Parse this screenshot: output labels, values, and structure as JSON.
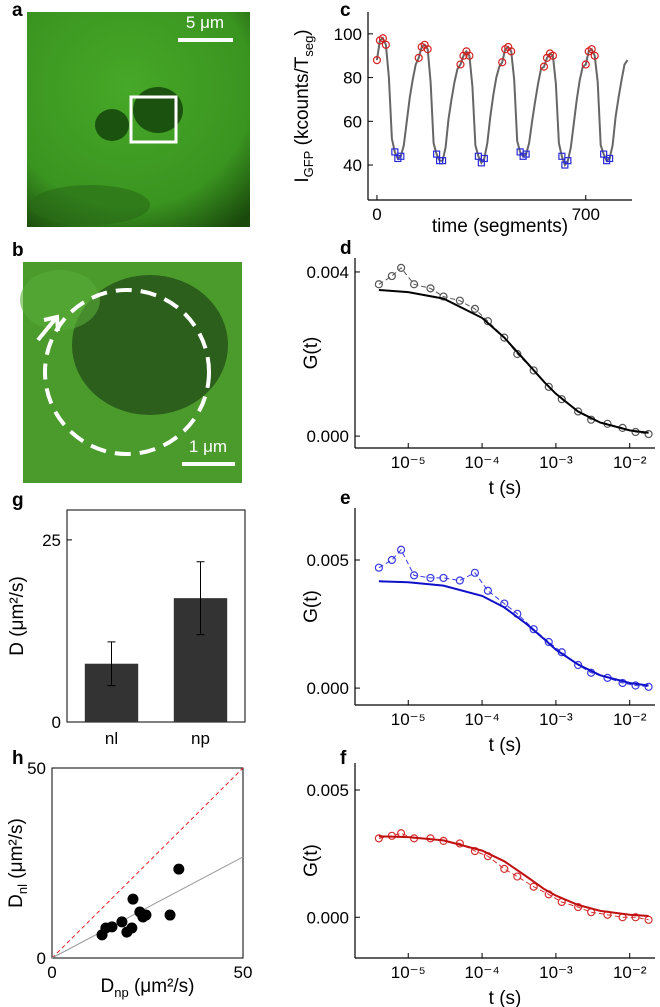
{
  "chart_data": [
    {
      "type": "image",
      "panel_label": "a",
      "scale_bar": "5 μm"
    },
    {
      "type": "image",
      "panel_label": "b",
      "scale_bar": "1 μm"
    },
    {
      "type": "line",
      "panel_label": "c",
      "xlabel": [
        "time (segments)"
      ],
      "ylabel": [
        "I",
        "GFP",
        " (kcounts/T",
        "seg",
        ")"
      ],
      "xlim": [
        -30,
        855
      ],
      "ylim": [
        24,
        110
      ],
      "xticks": [
        0,
        700
      ],
      "yticks": [
        40,
        60,
        80,
        100
      ],
      "series": [
        {
          "color": "#666666",
          "x": [
            0,
            10,
            20,
            30,
            40,
            50,
            60,
            70,
            80,
            90,
            100,
            110,
            120,
            130,
            140,
            150,
            160,
            170,
            180,
            190,
            200,
            210,
            220,
            230,
            240,
            250,
            260,
            270,
            280,
            290,
            300,
            310,
            320,
            330,
            340,
            350,
            360,
            370,
            380,
            390,
            400,
            410,
            420,
            430,
            440,
            450,
            460,
            470,
            480,
            490,
            500,
            510,
            520,
            530,
            540,
            550,
            560,
            570,
            580,
            590,
            600,
            610,
            620,
            630,
            640,
            650,
            660,
            670,
            680,
            690,
            700,
            710,
            720,
            730,
            740,
            750,
            760,
            770,
            780,
            790,
            800,
            810,
            820,
            830,
            840
          ],
          "values": [
            88,
            97,
            98,
            95,
            80,
            52,
            46,
            43,
            44,
            49,
            60,
            71,
            79,
            86,
            89,
            94,
            95,
            93,
            78,
            50,
            45,
            42,
            42,
            48,
            61,
            70,
            78,
            84,
            86,
            90,
            92,
            90,
            76,
            49,
            44,
            41,
            43,
            50,
            62,
            72,
            80,
            85,
            87,
            93,
            94,
            92,
            79,
            51,
            46,
            44,
            45,
            50,
            60,
            69,
            77,
            84,
            85,
            89,
            91,
            90,
            77,
            50,
            44,
            40,
            42,
            48,
            59,
            70,
            79,
            85,
            86,
            92,
            93,
            90,
            78,
            49,
            45,
            42,
            43,
            49,
            62,
            71,
            79,
            86,
            88
          ]
        },
        {
          "color": "#d42020",
          "marker": "circle",
          "x": [
            0,
            10,
            20,
            30,
            140,
            150,
            160,
            170,
            280,
            290,
            300,
            310,
            420,
            430,
            440,
            450,
            560,
            570,
            580,
            590,
            700,
            710,
            720,
            730
          ],
          "values": [
            88,
            97,
            98,
            95,
            89,
            94,
            95,
            93,
            86,
            90,
            92,
            90,
            87,
            93,
            94,
            92,
            85,
            89,
            91,
            90,
            86,
            92,
            93,
            90
          ]
        },
        {
          "color": "#2a2ad8",
          "marker": "square",
          "x": [
            60,
            70,
            80,
            200,
            210,
            220,
            340,
            350,
            360,
            480,
            490,
            500,
            620,
            630,
            640,
            760,
            770,
            780
          ],
          "values": [
            46,
            43,
            44,
            45,
            42,
            42,
            44,
            41,
            43,
            46,
            44,
            45,
            44,
            40,
            42,
            45,
            42,
            43
          ]
        }
      ]
    },
    {
      "type": "line",
      "panel_label": "d",
      "log_x": true,
      "xlabel": [
        "t (s)"
      ],
      "ylabel": [
        "G(t)"
      ],
      "xlim": [
        1.9e-06,
        0.022
      ],
      "ylim": [
        -0.00029,
        0.00434
      ],
      "xticks": [
        {
          "value": 1e-05,
          "label": "10⁻⁵"
        },
        {
          "value": 0.0001,
          "label": "10⁻⁴"
        },
        {
          "value": 0.001,
          "label": "10⁻³"
        },
        {
          "value": 0.01,
          "label": "10⁻²"
        }
      ],
      "yticks": [
        {
          "value": 0,
          "label": "0.000"
        },
        {
          "value": 0.004,
          "label": "0.004"
        }
      ],
      "series": [
        {
          "color": "#555555",
          "marker": "circle",
          "dashed": true,
          "x": [
            4e-06,
            6e-06,
            8e-06,
            1.2e-05,
            2e-05,
            3e-05,
            5e-05,
            8e-05,
            0.00012,
            0.0002,
            0.0003,
            0.0005,
            0.0008,
            0.0012,
            0.002,
            0.003,
            0.005,
            0.008,
            0.012,
            0.018
          ],
          "values": [
            0.0037,
            0.0039,
            0.0041,
            0.0037,
            0.0036,
            0.0034,
            0.0033,
            0.0031,
            0.0028,
            0.0024,
            0.002,
            0.0016,
            0.0012,
            0.0009,
            0.0006,
            0.0004,
            0.0003,
            0.0002,
            0.0001,
            5e-05
          ]
        },
        {
          "color": "#000000",
          "x": [
            4e-06,
            1e-05,
            3e-05,
            0.0001,
            0.0002,
            0.0004,
            0.0007,
            0.001,
            0.002,
            0.004,
            0.01,
            0.018
          ],
          "values": [
            0.00356,
            0.00351,
            0.00335,
            0.00288,
            0.0024,
            0.0018,
            0.00131,
            0.00103,
            0.0006,
            0.00033,
            0.00014,
            8e-05
          ]
        }
      ]
    },
    {
      "type": "line",
      "panel_label": "e",
      "log_x": true,
      "xlabel": [
        "t (s)"
      ],
      "ylabel": [
        "G(t)"
      ],
      "xlim": [
        1.9e-06,
        0.022
      ],
      "ylim": [
        -0.00066,
        0.00703
      ],
      "xticks": [
        {
          "value": 1e-05,
          "label": "10⁻⁵"
        },
        {
          "value": 0.0001,
          "label": "10⁻⁴"
        },
        {
          "value": 0.001,
          "label": "10⁻³"
        },
        {
          "value": 0.01,
          "label": "10⁻²"
        }
      ],
      "yticks": [
        {
          "value": 0,
          "label": "0.000"
        },
        {
          "value": 0.005,
          "label": "0.005"
        }
      ],
      "series": [
        {
          "color": "#3a3ae0",
          "marker": "circle",
          "dashed": true,
          "x": [
            4e-06,
            6e-06,
            8e-06,
            1.2e-05,
            2e-05,
            3e-05,
            5e-05,
            8e-05,
            0.00012,
            0.0002,
            0.0003,
            0.0005,
            0.0008,
            0.0012,
            0.002,
            0.003,
            0.005,
            0.008,
            0.012,
            0.018
          ],
          "values": [
            0.0047,
            0.005,
            0.0054,
            0.0044,
            0.0043,
            0.0043,
            0.0042,
            0.0045,
            0.0038,
            0.0033,
            0.0029,
            0.0023,
            0.0018,
            0.0014,
            0.0009,
            0.0006,
            0.0004,
            0.0002,
            0.0001,
            5e-05
          ]
        },
        {
          "color": "#1010c8",
          "x": [
            4e-06,
            1e-05,
            3e-05,
            0.0001,
            0.0002,
            0.0004,
            0.0007,
            0.001,
            0.002,
            0.004,
            0.01,
            0.018
          ],
          "values": [
            0.00417,
            0.00413,
            0.004,
            0.0036,
            0.00315,
            0.0025,
            0.0019,
            0.0015,
            0.00092,
            0.0005,
            0.0002,
            0.0001
          ]
        }
      ]
    },
    {
      "type": "line",
      "panel_label": "f",
      "log_x": true,
      "xlabel": [
        "t (s)"
      ],
      "ylabel": [
        "G(t)"
      ],
      "xlim": [
        1.9e-06,
        0.022
      ],
      "ylim": [
        -0.0016,
        0.00606
      ],
      "xticks": [
        {
          "value": 1e-05,
          "label": "10⁻⁵"
        },
        {
          "value": 0.0001,
          "label": "10⁻⁴"
        },
        {
          "value": 0.001,
          "label": "10⁻³"
        },
        {
          "value": 0.01,
          "label": "10⁻²"
        }
      ],
      "yticks": [
        {
          "value": 0,
          "label": "0.000"
        },
        {
          "value": 0.005,
          "label": "0.005"
        }
      ],
      "series": [
        {
          "color": "#d43030",
          "marker": "circle",
          "dashed": true,
          "x": [
            4e-06,
            6e-06,
            8e-06,
            1.2e-05,
            2e-05,
            3e-05,
            5e-05,
            8e-05,
            0.00012,
            0.0002,
            0.0003,
            0.0005,
            0.0008,
            0.0012,
            0.002,
            0.003,
            0.005,
            0.008,
            0.012,
            0.018
          ],
          "values": [
            0.0031,
            0.0032,
            0.0033,
            0.0031,
            0.0031,
            0.003,
            0.0029,
            0.0026,
            0.0024,
            0.0019,
            0.0016,
            0.0012,
            0.0009,
            0.0006,
            0.0004,
            0.0002,
            0.0001,
            0,
            0,
            -0.0001
          ]
        },
        {
          "color": "#c01010",
          "x": [
            4e-06,
            1e-05,
            3e-05,
            0.0001,
            0.0002,
            0.0004,
            0.0007,
            0.001,
            0.002,
            0.004,
            0.01,
            0.018
          ],
          "values": [
            0.00318,
            0.00315,
            0.00302,
            0.00262,
            0.0022,
            0.0016,
            0.0011,
            0.00085,
            0.00048,
            0.00025,
            0.0001,
            5e-05
          ]
        }
      ]
    },
    {
      "type": "bar",
      "panel_label": "g",
      "ylabel": [
        "D (μm²/s)"
      ],
      "categories": [
        "nl",
        "np"
      ],
      "values": [
        8,
        17
      ],
      "errors": [
        3,
        5
      ],
      "color": "#333333",
      "ylim": [
        0,
        29.1
      ],
      "yticks": [
        0,
        25
      ],
      "box": true
    },
    {
      "type": "scatter",
      "panel_label": "h",
      "xlabel": [
        "D",
        "np",
        " (μm²/s)"
      ],
      "ylabel": [
        "D",
        "nl",
        " (μm²/s)"
      ],
      "xlim": [
        0,
        50
      ],
      "ylim": [
        0,
        50
      ],
      "xticks": [
        0,
        50
      ],
      "yticks": [
        0,
        50
      ],
      "box": true,
      "color": "#000000",
      "x": [
        13.1,
        14.1,
        15.7,
        18.3,
        19.6,
        21.2,
        20.9,
        23,
        24.6,
        23.8,
        30.9,
        33.2
      ],
      "values": [
        6.1,
        7.9,
        8.2,
        9.5,
        6.8,
        15.5,
        7.9,
        12.1,
        11.3,
        10.8,
        11.3,
        23.4
      ],
      "identity_line": {
        "x": [
          0,
          50
        ],
        "values": [
          0,
          50
        ],
        "color": "#e02020"
      },
      "fit_line": {
        "x": [
          0,
          50
        ],
        "values": [
          0,
          26.6
        ],
        "color": "#999999"
      }
    }
  ]
}
